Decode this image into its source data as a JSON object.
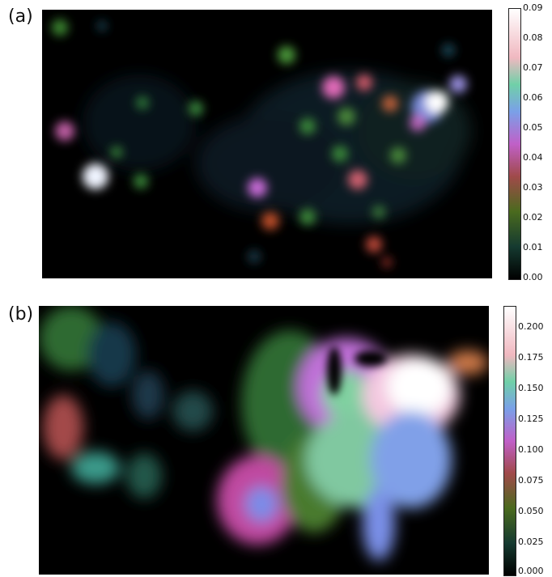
{
  "panels": [
    {
      "label": "(a)",
      "colorbar": {
        "ticks": [
          "0.09",
          "0.08",
          "0.07",
          "0.06",
          "0.05",
          "0.04",
          "0.03",
          "0.02",
          "0.01",
          "0.00"
        ],
        "min": 0.0,
        "max": 0.09
      }
    },
    {
      "label": "(b)",
      "colorbar": {
        "ticks": [
          "0.200",
          "0.175",
          "0.150",
          "0.125",
          "0.100",
          "0.075",
          "0.050",
          "0.025",
          "0.000"
        ],
        "min": 0.0,
        "max": 0.22
      }
    }
  ],
  "colormap": "cubehelix-like: black → green → magenta → blue → white"
}
